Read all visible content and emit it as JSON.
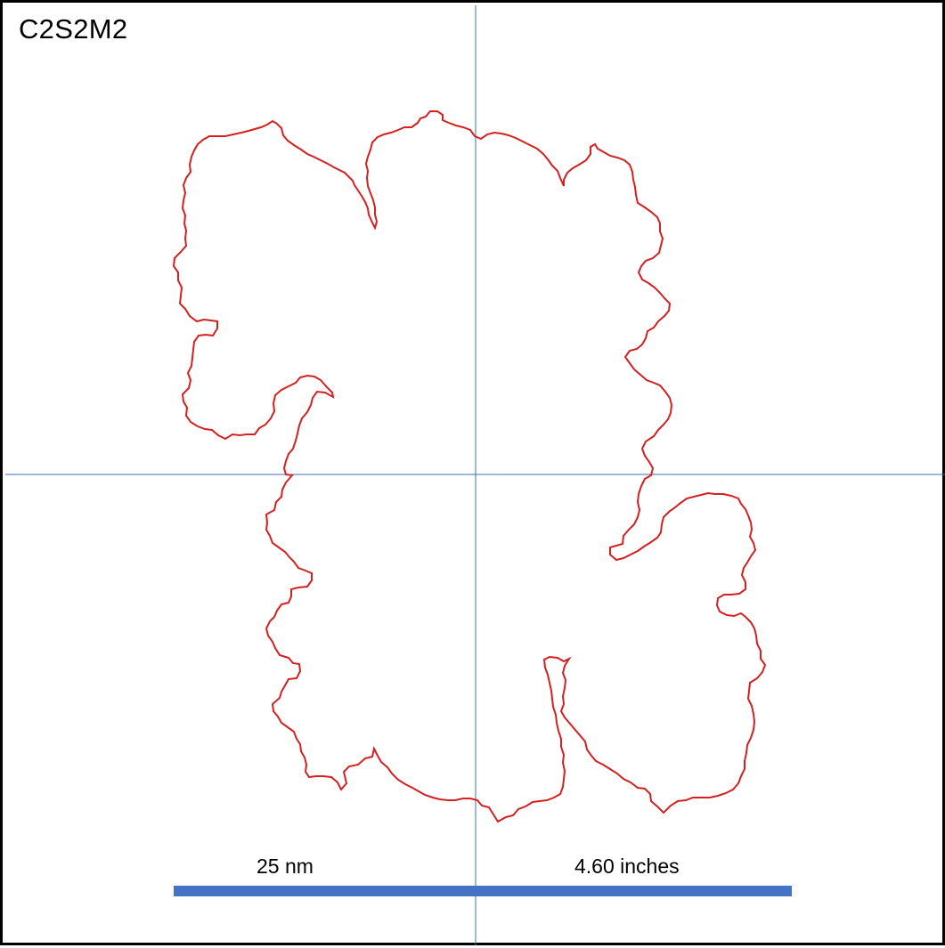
{
  "title": "C2S2M2",
  "scale_bar": {
    "left_label": "25 nm",
    "right_label": "4.60 inches",
    "color": "#4472c4"
  },
  "colors": {
    "outline": "#d42020",
    "crosshair": "#3d6db5",
    "border": "#000000",
    "background": "#ffffff"
  }
}
